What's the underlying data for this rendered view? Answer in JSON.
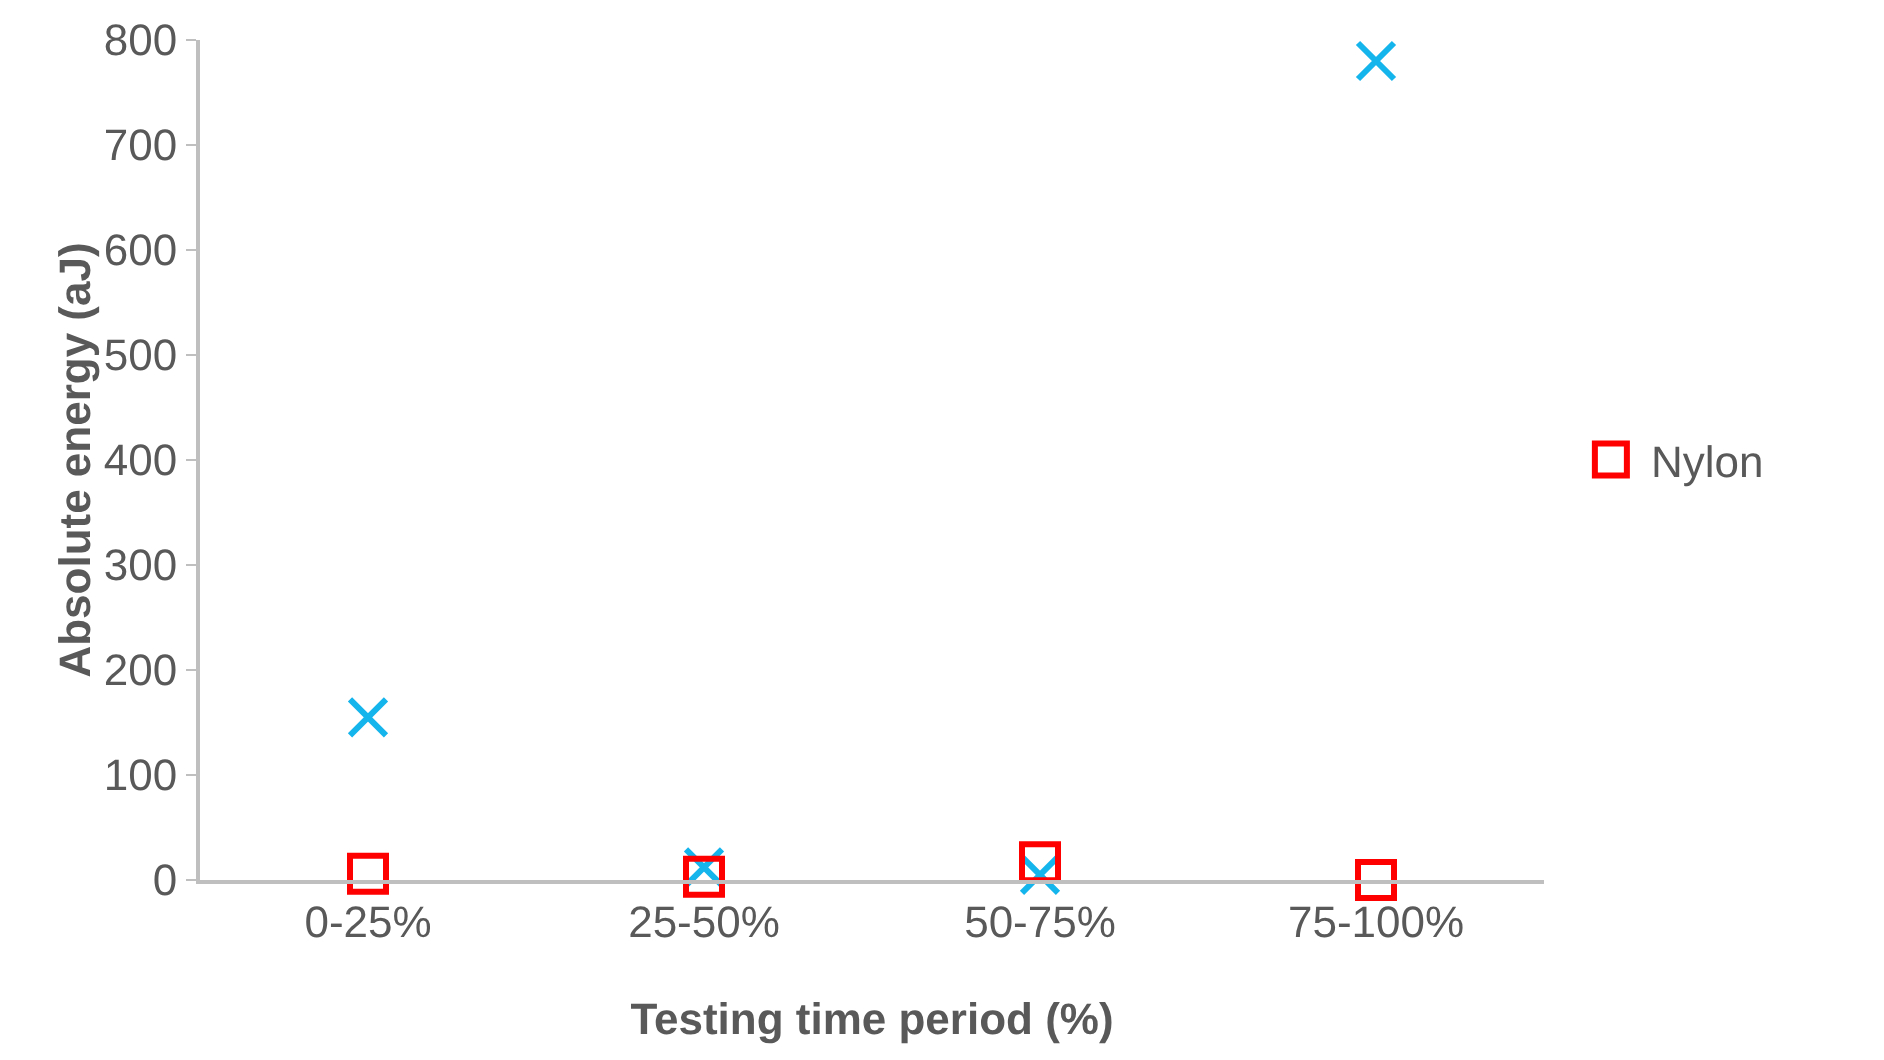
{
  "chart_data": {
    "type": "scatter",
    "xlabel": "Testing time period (%)",
    "ylabel": "Absolute energy (aJ)",
    "categories": [
      "0-25%",
      "25-50%",
      "50-75%",
      "75-100%"
    ],
    "series": [
      {
        "color": "#14b4ec",
        "marker": "cross",
        "values": [
          155,
          12,
          5,
          780
        ]
      },
      {
        "name": "Nylon",
        "color": "#ff0000",
        "marker": "square",
        "values": [
          6,
          3,
          17,
          0
        ]
      }
    ],
    "ylim": [
      0,
      800
    ],
    "yticks": [
      0,
      100,
      200,
      300,
      400,
      500,
      600,
      700,
      800
    ],
    "grid": false,
    "legend": "right"
  }
}
